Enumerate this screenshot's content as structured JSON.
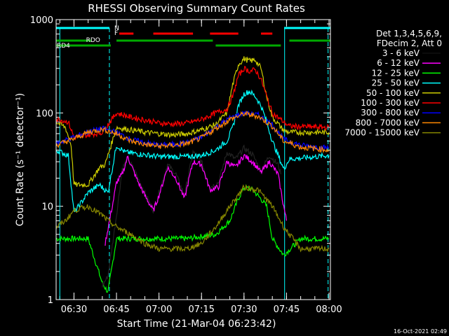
{
  "chart_data": {
    "type": "line",
    "title": "RHESSI Observing Summary Count Rates",
    "xlabel": "Start Time (21-Mar-04 06:23:42)",
    "ylabel": "Count Rate (s⁻¹ detector⁻¹)",
    "yscale": "log",
    "xlim": [
      "06:23:42",
      "08:00:30"
    ],
    "ylim": [
      1,
      1000
    ],
    "x_ticks": [
      "06:30",
      "06:45",
      "07:00",
      "07:15",
      "07:30",
      "07:45",
      "08:00"
    ],
    "y_ticks": [
      "1",
      "10",
      "100",
      "1000"
    ],
    "legend_header": [
      "Det 1,3,4,5,6,9,",
      "FDecim 2, Att 0"
    ],
    "legend_position": "right",
    "timestamp": "16-Oct-2021 02:49",
    "flags": [
      {
        "label": "N",
        "color": "#00ffff"
      },
      {
        "label": "F",
        "color": "#ff0000"
      },
      {
        "label": "RDO",
        "color": "#00aa00"
      },
      {
        "label": "RD4",
        "color": "#00aa00"
      }
    ],
    "series": [
      {
        "name": "3 - 6 keV",
        "color": "#000000",
        "x": [
          "06:40",
          "06:42",
          "06:45",
          "06:47",
          "06:49",
          "06:52",
          "06:55",
          "06:58",
          "07:00",
          "07:03",
          "07:06",
          "07:09",
          "07:12",
          "07:15",
          "07:18",
          "07:21",
          "07:24",
          "07:27",
          "07:30",
          "07:33",
          "07:36",
          "07:39",
          "07:42",
          "07:43"
        ],
        "values": [
          1.4,
          1.8,
          8,
          25,
          33,
          22,
          14,
          9,
          14,
          28,
          22,
          13,
          38,
          30,
          16,
          18,
          38,
          32,
          42,
          36,
          24,
          35,
          28,
          22
        ]
      },
      {
        "name": "6 - 12 keV",
        "color": "#ff00ff",
        "x": [
          "06:41",
          "06:44",
          "06:45",
          "06:47",
          "06:49",
          "06:52",
          "06:55",
          "06:58",
          "07:00",
          "07:03",
          "07:06",
          "07:09",
          "07:12",
          "07:15",
          "07:18",
          "07:21",
          "07:24",
          "07:27",
          "07:30",
          "07:33",
          "07:36",
          "07:39",
          "07:42",
          "07:44",
          "07:45"
        ],
        "values": [
          4,
          12,
          18,
          22,
          34,
          20,
          13,
          9,
          13,
          26,
          20,
          12,
          30,
          28,
          15,
          16,
          30,
          26,
          35,
          30,
          23,
          30,
          22,
          10,
          7
        ]
      },
      {
        "name": "12 - 25 keV",
        "color": "#00ff00",
        "x": [
          "06:23:42",
          "06:30",
          "06:35",
          "06:40",
          "06:42",
          "06:45",
          "06:50",
          "07:00",
          "07:10",
          "07:20",
          "07:25",
          "07:28",
          "07:30",
          "07:33",
          "07:36",
          "07:38",
          "07:40",
          "07:44",
          "07:50",
          "08:00"
        ],
        "values": [
          4.5,
          4.5,
          4.5,
          1.5,
          1.2,
          4.5,
          4.5,
          4.5,
          4.5,
          5,
          7,
          12,
          16,
          15,
          12,
          10,
          4.5,
          3,
          4.5,
          4.5
        ]
      },
      {
        "name": "25 - 50 keV",
        "color": "#00ffff",
        "x": [
          "06:23:42",
          "06:28",
          "06:30",
          "06:35",
          "06:39",
          "06:42",
          "06:45",
          "06:48",
          "07:00",
          "07:10",
          "07:15",
          "07:20",
          "07:24",
          "07:26",
          "07:28",
          "07:30",
          "07:32",
          "07:34",
          "07:36",
          "07:38",
          "07:40",
          "07:44",
          "07:46",
          "08:00"
        ],
        "values": [
          40,
          35,
          8.5,
          14,
          17,
          14,
          45,
          38,
          34,
          34,
          35,
          40,
          50,
          70,
          120,
          160,
          170,
          150,
          120,
          80,
          50,
          25,
          32,
          35
        ]
      },
      {
        "name": "50 - 100 keV",
        "color": "#cccc00",
        "x": [
          "06:23:42",
          "06:27",
          "06:29",
          "06:30",
          "06:35",
          "06:39",
          "06:41",
          "06:45",
          "06:50",
          "06:55",
          "07:00",
          "07:05",
          "07:10",
          "07:15",
          "07:20",
          "07:24",
          "07:26",
          "07:28",
          "07:30",
          "07:32",
          "07:34",
          "07:36",
          "07:38",
          "07:40",
          "07:44",
          "07:46",
          "08:00"
        ],
        "values": [
          80,
          70,
          45,
          17,
          17,
          26,
          28,
          70,
          66,
          62,
          60,
          58,
          60,
          66,
          75,
          100,
          200,
          330,
          380,
          360,
          370,
          300,
          150,
          90,
          65,
          62,
          62
        ]
      },
      {
        "name": "100 - 300 keV",
        "color": "#ff0000",
        "x": [
          "06:23:42",
          "06:25",
          "06:28",
          "06:30",
          "06:35",
          "06:40",
          "06:45",
          "06:50",
          "06:55",
          "07:00",
          "07:05",
          "07:10",
          "07:15",
          "07:20",
          "07:24",
          "07:26",
          "07:28",
          "07:30",
          "07:32",
          "07:34",
          "07:36",
          "07:38",
          "07:40",
          "07:44",
          "07:46",
          "08:00"
        ],
        "values": [
          85,
          85,
          80,
          55,
          58,
          62,
          100,
          90,
          84,
          78,
          76,
          78,
          85,
          100,
          110,
          150,
          250,
          300,
          280,
          290,
          230,
          150,
          100,
          80,
          72,
          70
        ]
      },
      {
        "name": "300 - 800 keV",
        "color": "#0000ff",
        "x": [
          "06:23:42",
          "06:30",
          "06:35",
          "06:40",
          "06:45",
          "06:50",
          "06:55",
          "07:00",
          "07:05",
          "07:10",
          "07:15",
          "07:20",
          "07:25",
          "07:30",
          "07:35",
          "07:40",
          "07:44",
          "07:50",
          "08:00"
        ],
        "values": [
          47,
          55,
          63,
          68,
          62,
          52,
          48,
          45,
          46,
          48,
          55,
          70,
          88,
          100,
          95,
          75,
          52,
          45,
          42
        ]
      },
      {
        "name": "800 - 7000 keV",
        "color": "#ff8800",
        "x": [
          "06:23:42",
          "06:30",
          "06:35",
          "06:40",
          "06:45",
          "06:50",
          "06:55",
          "07:00",
          "07:05",
          "07:10",
          "07:15",
          "07:20",
          "07:25",
          "07:30",
          "07:35",
          "07:40",
          "07:44",
          "07:50",
          "08:00"
        ],
        "values": [
          45,
          53,
          62,
          67,
          60,
          50,
          46,
          44,
          45,
          47,
          54,
          68,
          85,
          98,
          92,
          72,
          50,
          43,
          40
        ]
      },
      {
        "name": "7000 - 15000 keV",
        "color": "#888800",
        "x": [
          "06:23:42",
          "06:27",
          "06:30",
          "06:35",
          "06:40",
          "06:42",
          "06:45",
          "06:50",
          "06:55",
          "07:00",
          "07:05",
          "07:10",
          "07:15",
          "07:20",
          "07:25",
          "07:30",
          "07:35",
          "07:40",
          "07:44",
          "07:46",
          "07:50",
          "08:00"
        ],
        "values": [
          6,
          7,
          9,
          10,
          8,
          7,
          6,
          5,
          4,
          3.5,
          3.5,
          3.5,
          4,
          6,
          10,
          16,
          15,
          10,
          6,
          5,
          3.5,
          3.5
        ]
      }
    ]
  }
}
